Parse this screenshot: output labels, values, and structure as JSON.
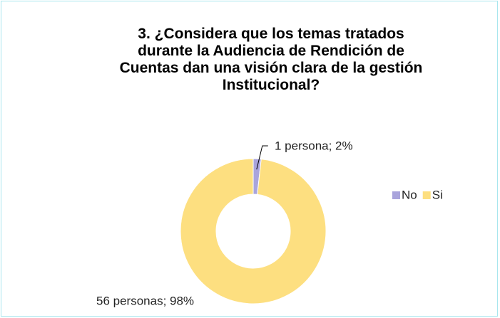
{
  "chart_data": {
    "type": "donut",
    "title": "3. ¿Considera que los temas tratados\ndurante la Audiencia de Rendición de\nCuentas dan una visión clara de la gestión\nInstitucional?",
    "categories": [
      "No",
      "Si"
    ],
    "values": [
      1,
      56
    ],
    "value_labels": [
      "1 persona; 2%",
      "56 personas; 98%"
    ],
    "colors": [
      "#a9a4dc",
      "#fddf80"
    ],
    "legend": "right"
  }
}
